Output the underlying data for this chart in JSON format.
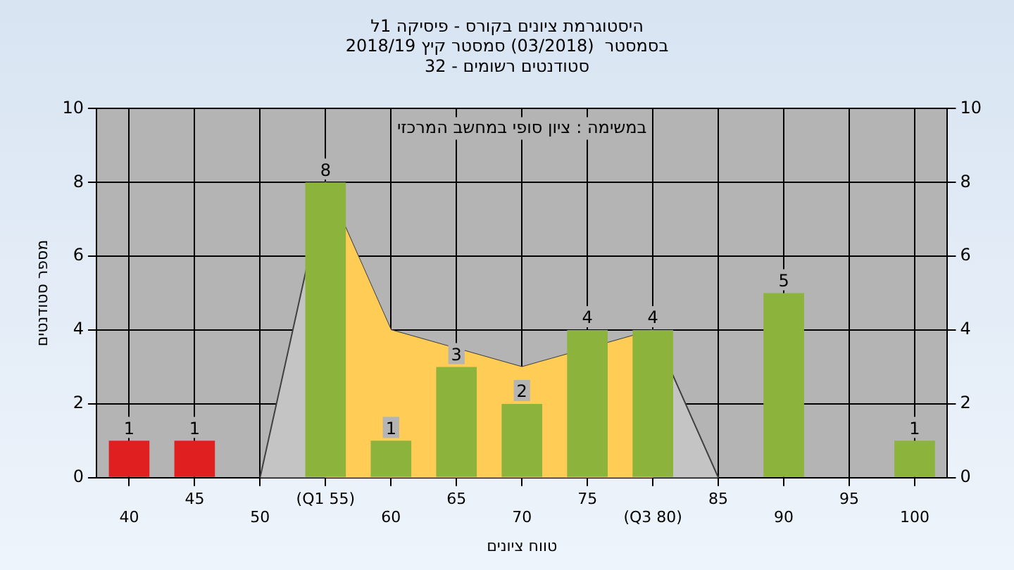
{
  "chart_data": {
    "type": "bar",
    "title": "היסטוגרמת ציונים בקורס - פיסיקה 1ל",
    "subtitle": "בסמסטר  (03/2018) סמסטר קיץ 2018/19\nסטודנטים רשומים - 32",
    "xlabel": "טווח ציונים",
    "ylabel": "מספר סטודנטים",
    "annotations": [
      "במשימה : ציון סופי במחשב המרכזי"
    ],
    "categories": [
      "40",
      "45",
      "50",
      "(Q1 55)",
      "60",
      "65",
      "70",
      "75",
      "(Q3 80)",
      "85",
      "90",
      "95",
      "100"
    ],
    "series": [
      {
        "values": [
          1,
          1,
          0,
          8,
          1,
          3,
          2,
          4,
          4,
          0,
          5,
          0,
          1
        ],
        "colors": [
          "#e02020",
          "#e02020",
          "#8cb43c",
          "#8cb43c",
          "#8cb43c",
          "#8cb43c",
          "#8cb43c",
          "#8cb43c",
          "#8cb43c",
          "#8cb43c",
          "#8cb43c",
          "#8cb43c",
          "#8cb43c"
        ],
        "value_labels": [
          "1",
          "1",
          null,
          "8",
          "1",
          "3",
          "2",
          "4",
          "4",
          null,
          "5",
          null,
          "1"
        ]
      },
      {
        "type": "area",
        "color": "#c4c4c4",
        "values": [
          null,
          null,
          0,
          8,
          4,
          null,
          3,
          null,
          4,
          0,
          null,
          null,
          null
        ]
      },
      {
        "type": "area",
        "color": "#ffcc55",
        "values": [
          null,
          null,
          null,
          8,
          4,
          null,
          3,
          null,
          4,
          null,
          null,
          null,
          null
        ]
      }
    ],
    "ylim": [
      0,
      10
    ],
    "yticks": [
      0,
      2,
      4,
      6,
      8,
      10
    ],
    "y2lim": [
      0,
      10
    ],
    "y2ticks": [
      0,
      2,
      4,
      6,
      8,
      10
    ],
    "grid": true,
    "legend": false
  }
}
